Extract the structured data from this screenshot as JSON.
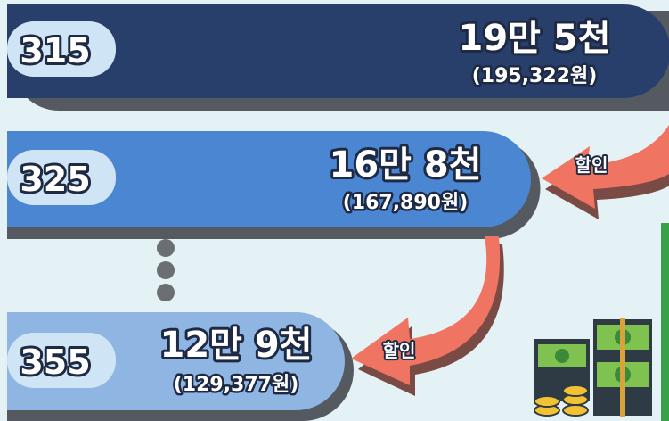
{
  "rows": [
    {
      "label": "315",
      "amount": "19만 5천",
      "amount_detail": "(195,322원)"
    },
    {
      "label": "325",
      "amount": "16만 8천",
      "amount_detail": "(167,890원)"
    },
    {
      "label": "355",
      "amount": "12만 9천",
      "amount_detail": "(129,377원)"
    }
  ],
  "discounts": [
    "할인",
    "할인"
  ]
}
